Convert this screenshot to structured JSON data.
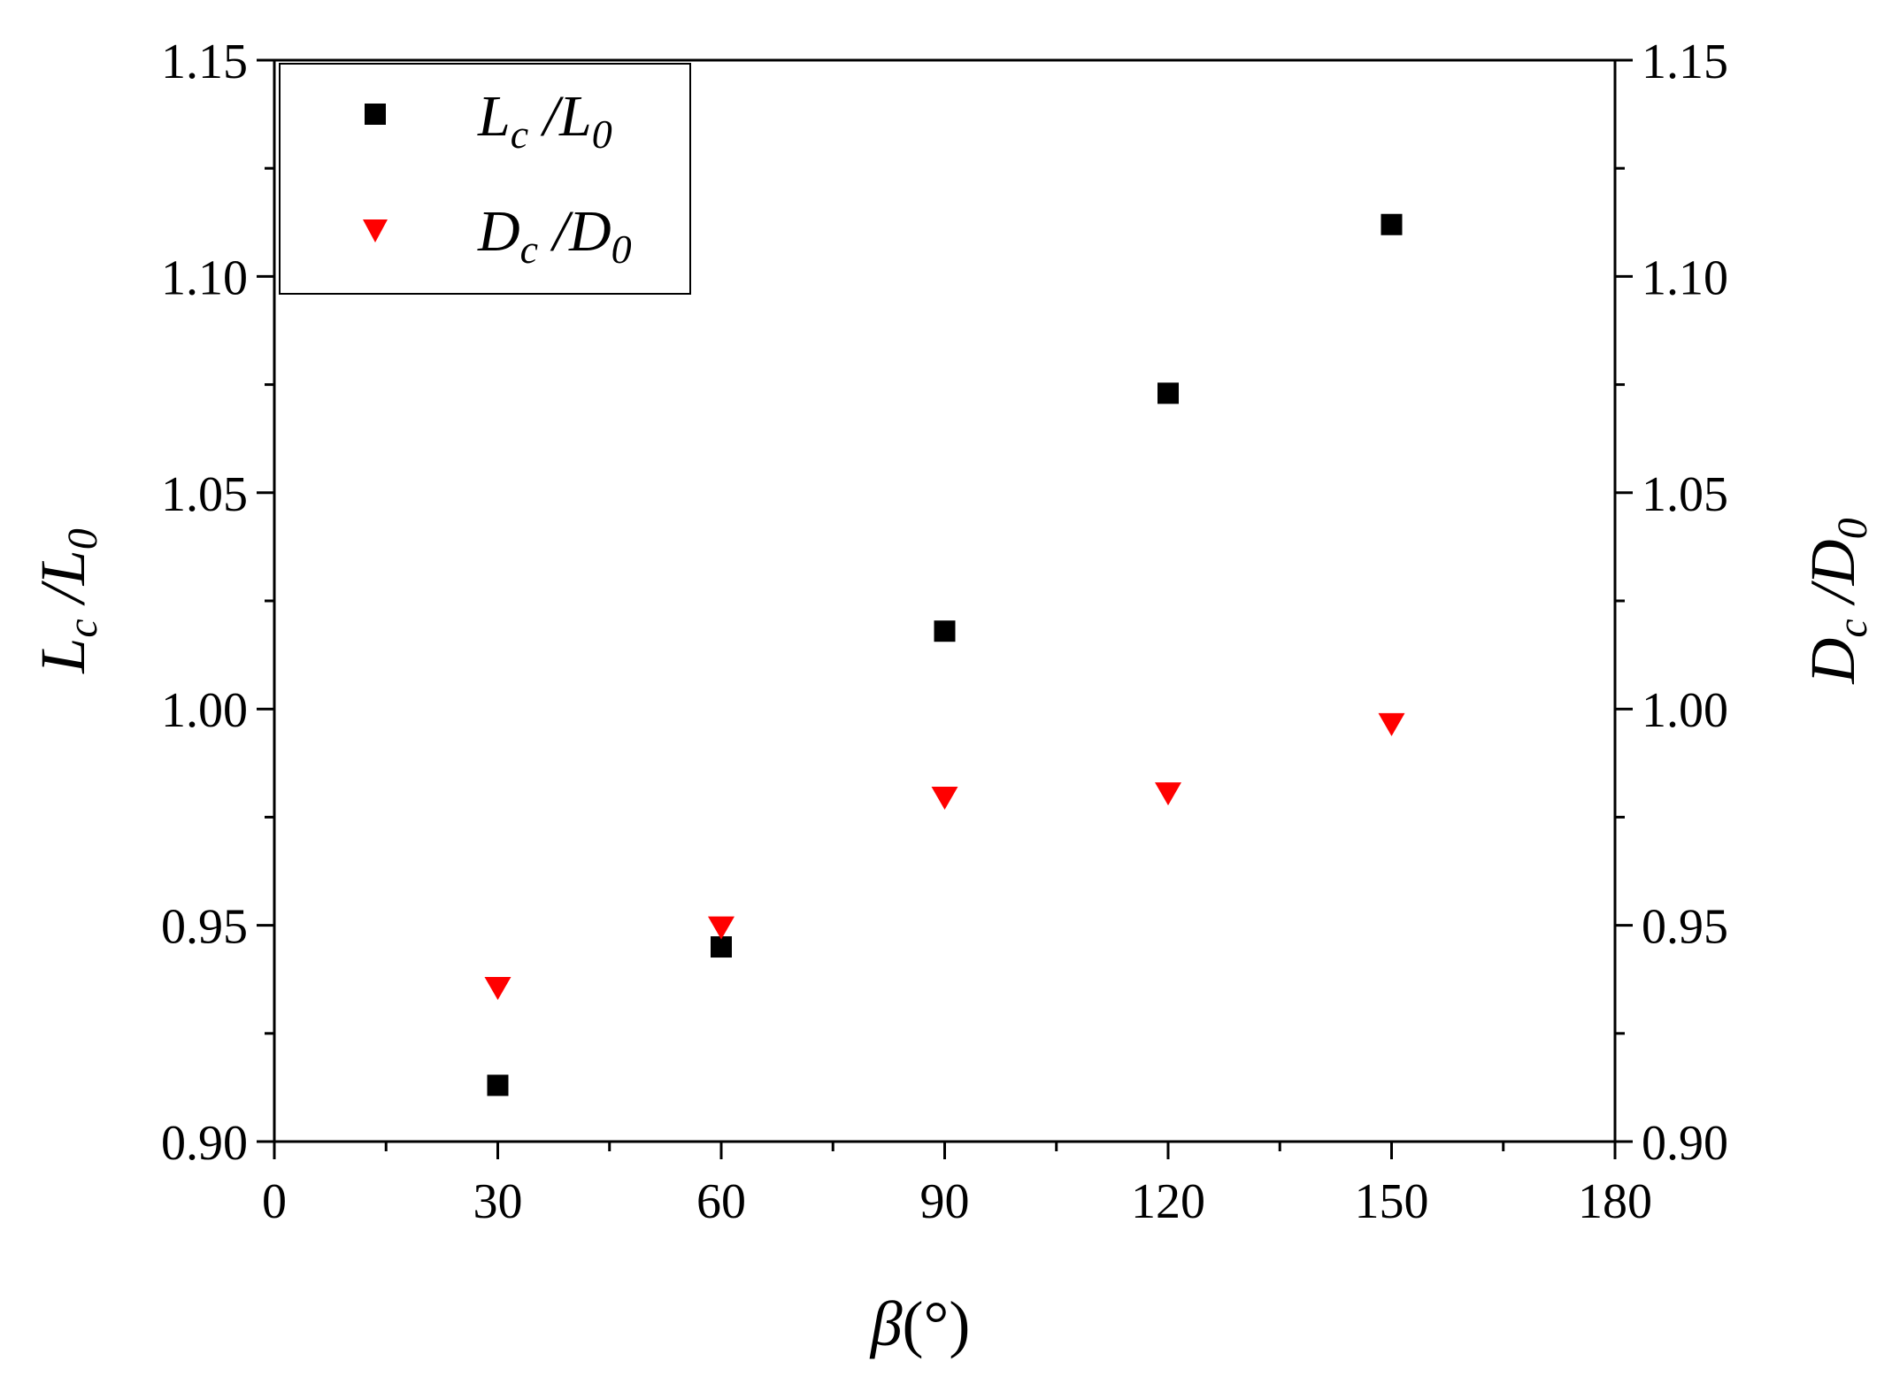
{
  "chart_data": {
    "type": "scatter",
    "title": "",
    "x": [
      30,
      60,
      90,
      120,
      150
    ],
    "xlim": [
      0,
      180
    ],
    "xticks": [
      0,
      30,
      60,
      90,
      120,
      150,
      180
    ],
    "xtick_labels": [
      "0",
      "30",
      "60",
      "90",
      "120",
      "150",
      "180"
    ],
    "xlabel": {
      "main": "β",
      "unit": "(°)"
    },
    "ylim": [
      0.9,
      1.15
    ],
    "yticks": [
      0.9,
      0.95,
      1.0,
      1.05,
      1.1,
      1.15
    ],
    "ytick_labels": [
      "0.90",
      "0.95",
      "1.00",
      "1.05",
      "1.10",
      "1.15"
    ],
    "ylabel_left": {
      "base": "L",
      "sub1": "c",
      "slash": " /",
      "base2": "L",
      "sub2": "0"
    },
    "ylabel_right": {
      "base": "D",
      "sub1": "c",
      "slash": " /",
      "base2": "D",
      "sub2": "0"
    },
    "legend_position": "top-left",
    "series": [
      {
        "name": "Lc /L0",
        "label": {
          "base": "L",
          "sub1": "c",
          "slash": " /",
          "base2": "L",
          "sub2": "0"
        },
        "marker": "square",
        "color": "#000000",
        "values": [
          0.913,
          0.945,
          1.018,
          1.073,
          1.112
        ]
      },
      {
        "name": "Dc /D0",
        "label": {
          "base": "D",
          "sub1": "c",
          "slash": " /",
          "base2": "D",
          "sub2": "0"
        },
        "marker": "triangle-down",
        "color": "#ff0000",
        "values": [
          0.936,
          0.95,
          0.98,
          0.981,
          0.997
        ]
      }
    ]
  }
}
